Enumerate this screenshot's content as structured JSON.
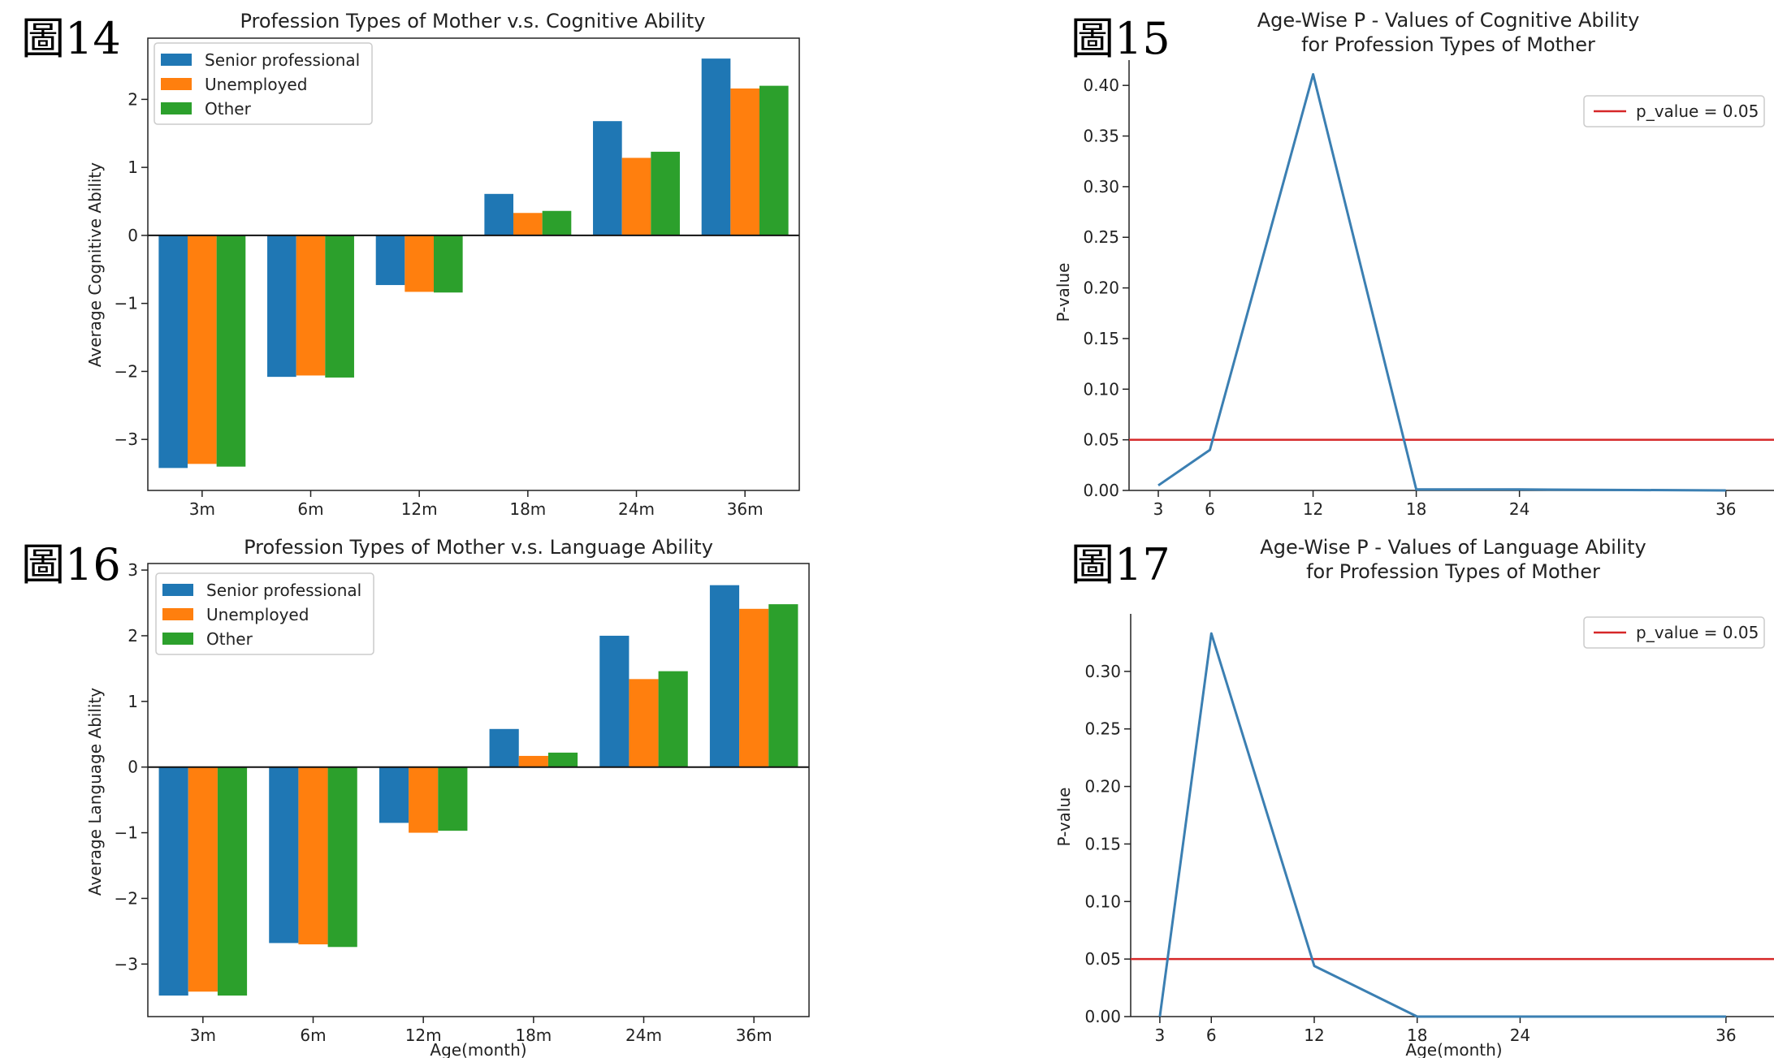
{
  "figure_labels": [
    "圖14",
    "圖15",
    "圖16",
    "圖17"
  ],
  "colors": {
    "series": [
      "#1f77b4",
      "#ff7f0e",
      "#2ca02c"
    ],
    "line": "#3b7fb2",
    "threshold": "#d62728"
  },
  "chart_data": [
    {
      "type": "bar",
      "title": "Profession Types of Mother v.s. Cognitive Ability",
      "xlabel": "",
      "ylabel": "Average Cognitive Ability",
      "ylim": [
        -3.75,
        2.9
      ],
      "yticks": [
        -3,
        -2,
        -1,
        0,
        1,
        2
      ],
      "categories": [
        "3m",
        "6m",
        "12m",
        "18m",
        "24m",
        "36m"
      ],
      "series": [
        {
          "name": "Senior professional",
          "values": [
            -3.42,
            -2.08,
            -0.73,
            0.61,
            1.68,
            2.6
          ]
        },
        {
          "name": "Unemployed",
          "values": [
            -3.36,
            -2.06,
            -0.83,
            0.33,
            1.14,
            2.16
          ]
        },
        {
          "name": "Other",
          "values": [
            -3.4,
            -2.09,
            -0.84,
            0.36,
            1.23,
            2.2
          ]
        }
      ],
      "legend": "top-left",
      "zero_line": true
    },
    {
      "type": "line",
      "title": "Age-Wise P - Values of Cognitive Ability\nfor Profession Types of Mother",
      "xlabel": "",
      "ylabel": "P-value",
      "xlim": [
        1.3,
        38.8
      ],
      "ylim": [
        0,
        0.425
      ],
      "xticks": [
        3,
        6,
        12,
        18,
        24,
        36
      ],
      "yticks": [
        0.0,
        0.05,
        0.1,
        0.15,
        0.2,
        0.25,
        0.3,
        0.35,
        0.4
      ],
      "ytick_labels": [
        "0.00",
        "0.05",
        "0.10",
        "0.15",
        "0.20",
        "0.25",
        "0.30",
        "0.35",
        "0.40"
      ],
      "x": [
        3,
        6,
        12,
        18,
        24,
        36
      ],
      "y": [
        0.005,
        0.04,
        0.411,
        0.001,
        0.001,
        0.0
      ],
      "threshold": {
        "label": "p_value = 0.05",
        "value": 0.05
      },
      "legend": "top-right"
    },
    {
      "type": "bar",
      "title": "Profession Types of Mother v.s. Language Ability",
      "xlabel": "Age(month)",
      "ylabel": "Average Language Ability",
      "ylim": [
        -3.8,
        3.1
      ],
      "yticks": [
        -3,
        -2,
        -1,
        0,
        1,
        2,
        3
      ],
      "categories": [
        "3m",
        "6m",
        "12m",
        "18m",
        "24m",
        "36m"
      ],
      "series": [
        {
          "name": "Senior professional",
          "values": [
            -3.48,
            -2.68,
            -0.85,
            0.58,
            2.0,
            2.77
          ]
        },
        {
          "name": "Unemployed",
          "values": [
            -3.42,
            -2.7,
            -1.0,
            0.17,
            1.34,
            2.41
          ]
        },
        {
          "name": "Other",
          "values": [
            -3.48,
            -2.74,
            -0.97,
            0.22,
            1.46,
            2.48
          ]
        }
      ],
      "legend": "top-left",
      "zero_line": true
    },
    {
      "type": "line",
      "title": "Age-Wise P - Values of Language Ability\nfor Profession Types of Mother",
      "xlabel": "Age(month)",
      "ylabel": "P-value",
      "xlim": [
        1.3,
        38.8
      ],
      "ylim": [
        0,
        0.35
      ],
      "xticks": [
        3,
        6,
        12,
        18,
        24,
        36
      ],
      "yticks": [
        0.0,
        0.05,
        0.1,
        0.15,
        0.2,
        0.25,
        0.3
      ],
      "ytick_labels": [
        "0.00",
        "0.05",
        "0.10",
        "0.15",
        "0.20",
        "0.25",
        "0.30"
      ],
      "x": [
        3,
        6,
        12,
        18,
        24,
        36
      ],
      "y": [
        0.0,
        0.333,
        0.044,
        0.0,
        0.0,
        0.0
      ],
      "threshold": {
        "label": "p_value = 0.05",
        "value": 0.05
      },
      "legend": "top-right"
    }
  ]
}
